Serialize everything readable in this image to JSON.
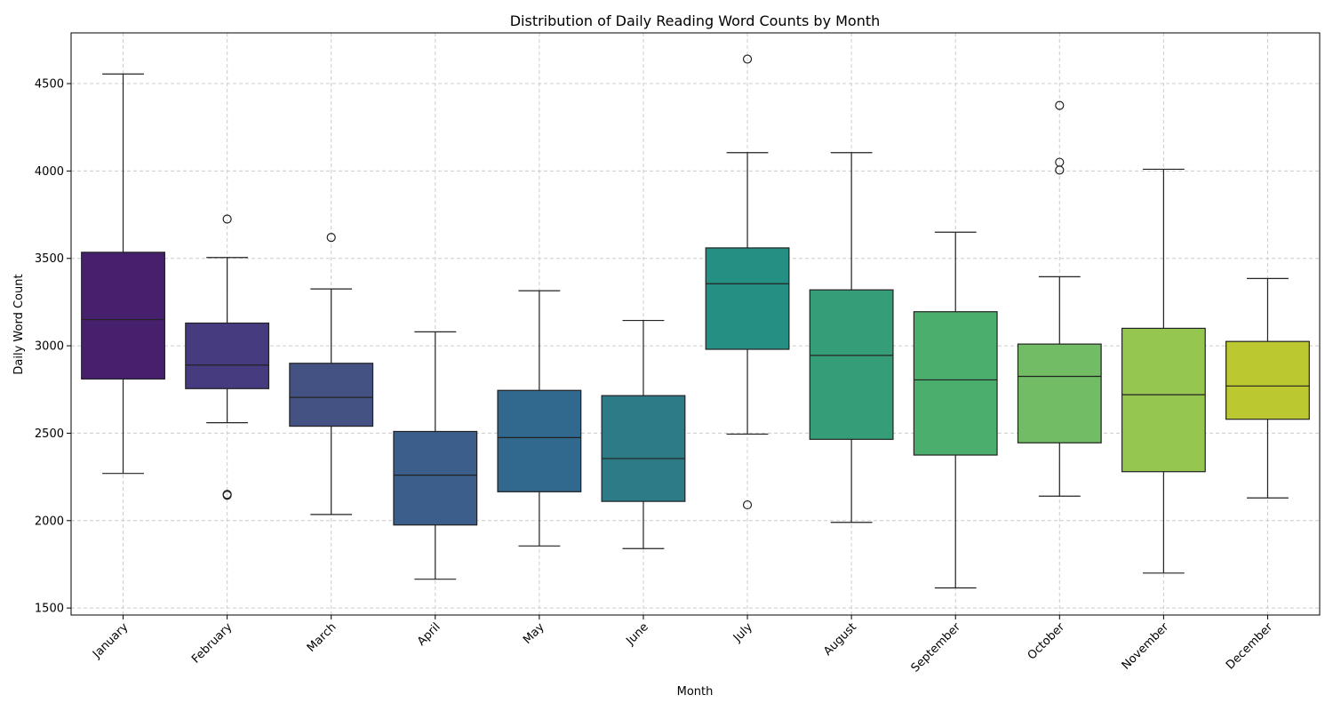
{
  "chart_data": {
    "type": "box",
    "title": "Distribution of Daily Reading Word Counts by Month",
    "xlabel": "Month",
    "ylabel": "Daily Word Count",
    "ylim": [
      1460,
      4790
    ],
    "yticks": [
      1500,
      2000,
      2500,
      3000,
      3500,
      4000,
      4500
    ],
    "grid": true,
    "categories": [
      "January",
      "February",
      "March",
      "April",
      "May",
      "June",
      "July",
      "August",
      "September",
      "October",
      "November",
      "December"
    ],
    "colors": [
      "#46206c",
      "#473b7f",
      "#445183",
      "#3b5f8a",
      "#31688e",
      "#2d7b87",
      "#268f84",
      "#359e78",
      "#4cae6c",
      "#71bc65",
      "#95c650",
      "#bcc830"
    ],
    "boxes": [
      {
        "whisker_low": 2270,
        "q1": 2810,
        "median": 3150,
        "q3": 3535,
        "whisker_high": 4555,
        "outliers": []
      },
      {
        "whisker_low": 2560,
        "q1": 2755,
        "median": 2890,
        "q3": 3130,
        "whisker_high": 3505,
        "outliers": [
          3725,
          2150,
          2145
        ]
      },
      {
        "whisker_low": 2035,
        "q1": 2540,
        "median": 2705,
        "q3": 2900,
        "whisker_high": 3325,
        "outliers": [
          3620
        ]
      },
      {
        "whisker_low": 1665,
        "q1": 1975,
        "median": 2260,
        "q3": 2510,
        "whisker_high": 3080,
        "outliers": []
      },
      {
        "whisker_low": 1855,
        "q1": 2165,
        "median": 2475,
        "q3": 2745,
        "whisker_high": 3315,
        "outliers": []
      },
      {
        "whisker_low": 1840,
        "q1": 2110,
        "median": 2355,
        "q3": 2715,
        "whisker_high": 3145,
        "outliers": []
      },
      {
        "whisker_low": 2495,
        "q1": 2980,
        "median": 3355,
        "q3": 3560,
        "whisker_high": 4105,
        "outliers": [
          4640,
          2090
        ]
      },
      {
        "whisker_low": 1990,
        "q1": 2465,
        "median": 2945,
        "q3": 3320,
        "whisker_high": 4105,
        "outliers": []
      },
      {
        "whisker_low": 1615,
        "q1": 2375,
        "median": 2805,
        "q3": 3195,
        "whisker_high": 3650,
        "outliers": []
      },
      {
        "whisker_low": 2140,
        "q1": 2445,
        "median": 2825,
        "q3": 3010,
        "whisker_high": 3395,
        "outliers": [
          4375,
          4050,
          4005
        ]
      },
      {
        "whisker_low": 1700,
        "q1": 2280,
        "median": 2720,
        "q3": 3100,
        "whisker_high": 4010,
        "outliers": []
      },
      {
        "whisker_low": 2130,
        "q1": 2580,
        "median": 2770,
        "q3": 3025,
        "whisker_high": 3385,
        "outliers": []
      }
    ]
  }
}
